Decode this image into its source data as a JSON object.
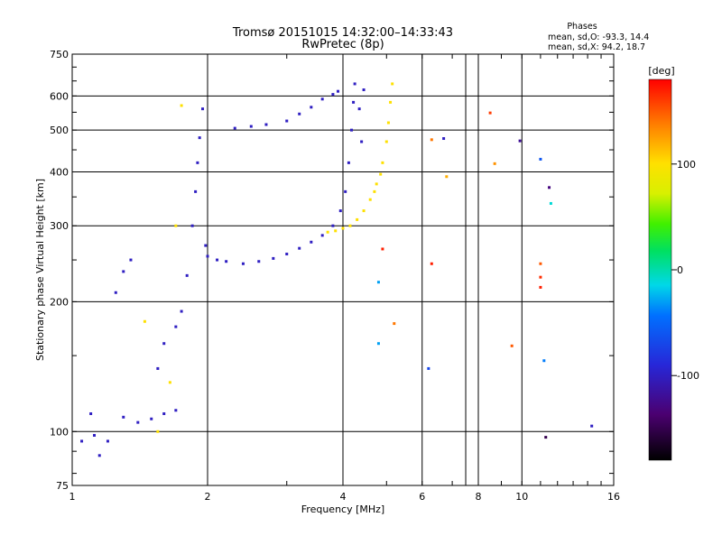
{
  "chart_data": {
    "type": "scatter",
    "title": "Tromsø 20151015 14:32:00–14:33:43",
    "subtitle": "RwPretec (8p)",
    "xlabel": "Frequency [MHz]",
    "ylabel": "Stationary phase Virtual Height [km]",
    "x_scale": "log",
    "y_scale": "log",
    "xlim": [
      1,
      16
    ],
    "ylim": [
      75,
      750
    ],
    "x_ticks": [
      1,
      2,
      4,
      6,
      8,
      10,
      16
    ],
    "x_tick_labels": [
      "1",
      "2",
      "4",
      "6",
      "8",
      "10",
      "16"
    ],
    "x_grid": [
      2,
      4,
      6,
      7.5,
      8,
      10
    ],
    "y_ticks": [
      75,
      100,
      200,
      300,
      400,
      500,
      600,
      750
    ],
    "y_tick_labels": [
      "75",
      "100",
      "200",
      "300",
      "400",
      "500",
      "600",
      "750"
    ],
    "y_grid": [
      100,
      200,
      300,
      400,
      500,
      600
    ],
    "stats_title": "Phases",
    "stats": [
      "mean, sd,O: -93.3, 14.4",
      "mean, sd,X:  94.2, 18.7"
    ],
    "colorbar": {
      "label": "[deg]",
      "range": [
        -180,
        180
      ],
      "ticks": [
        100,
        0,
        -100
      ],
      "tick_labels": [
        "100",
        "0",
        "-100"
      ]
    },
    "series": [
      {
        "name": "O-mode trace (blue/purple, ~-100 deg)",
        "phase_deg": -100,
        "points": [
          [
            1.05,
            95
          ],
          [
            1.1,
            110
          ],
          [
            1.12,
            98
          ],
          [
            1.15,
            88
          ],
          [
            1.2,
            95
          ],
          [
            1.25,
            210
          ],
          [
            1.3,
            235
          ],
          [
            1.35,
            250
          ],
          [
            1.3,
            108
          ],
          [
            1.4,
            105
          ],
          [
            1.5,
            107
          ],
          [
            1.6,
            110
          ],
          [
            1.7,
            112
          ],
          [
            1.55,
            140
          ],
          [
            1.6,
            160
          ],
          [
            1.7,
            175
          ],
          [
            1.75,
            190
          ],
          [
            1.8,
            230
          ],
          [
            1.85,
            300
          ],
          [
            1.88,
            360
          ],
          [
            1.9,
            420
          ],
          [
            1.92,
            480
          ],
          [
            1.95,
            560
          ],
          [
            1.98,
            270
          ],
          [
            2.0,
            255
          ],
          [
            2.1,
            250
          ],
          [
            2.2,
            248
          ],
          [
            2.4,
            245
          ],
          [
            2.6,
            248
          ],
          [
            2.8,
            252
          ],
          [
            3.0,
            258
          ],
          [
            3.2,
            266
          ],
          [
            3.4,
            275
          ],
          [
            3.6,
            285
          ],
          [
            3.8,
            300
          ],
          [
            3.95,
            325
          ],
          [
            4.05,
            360
          ],
          [
            4.12,
            420
          ],
          [
            4.18,
            500
          ],
          [
            4.22,
            580
          ],
          [
            4.25,
            640
          ],
          [
            4.35,
            560
          ],
          [
            4.4,
            470
          ],
          [
            4.45,
            620
          ],
          [
            2.3,
            505
          ],
          [
            2.5,
            510
          ],
          [
            2.7,
            515
          ],
          [
            3.0,
            525
          ],
          [
            3.2,
            545
          ],
          [
            3.4,
            565
          ],
          [
            3.6,
            590
          ],
          [
            3.8,
            605
          ],
          [
            3.9,
            615
          ]
        ]
      },
      {
        "name": "X-mode trace (yellow, ~+100 deg)",
        "phase_deg": 100,
        "points": [
          [
            3.7,
            290
          ],
          [
            3.85,
            292
          ],
          [
            4.0,
            296
          ],
          [
            4.15,
            300
          ],
          [
            4.3,
            310
          ],
          [
            4.45,
            325
          ],
          [
            4.6,
            345
          ],
          [
            4.75,
            375
          ],
          [
            4.9,
            420
          ],
          [
            5.0,
            470
          ],
          [
            5.05,
            520
          ],
          [
            5.1,
            580
          ],
          [
            5.15,
            640
          ],
          [
            4.7,
            360
          ],
          [
            4.85,
            395
          ],
          [
            1.75,
            570
          ],
          [
            1.7,
            300
          ],
          [
            1.65,
            130
          ],
          [
            1.55,
            100
          ],
          [
            1.45,
            180
          ]
        ]
      },
      {
        "name": "scattered outliers",
        "points": [
          [
            6.3,
            475,
            140
          ],
          [
            6.7,
            478,
            -100
          ],
          [
            6.8,
            390,
            120
          ],
          [
            6.3,
            245,
            170
          ],
          [
            6.2,
            140,
            -70
          ],
          [
            8.5,
            548,
            160
          ],
          [
            8.7,
            418,
            130
          ],
          [
            9.5,
            158,
            150
          ],
          [
            9.9,
            472,
            -120
          ],
          [
            11.0,
            428,
            -60
          ],
          [
            11.5,
            368,
            -130
          ],
          [
            11.6,
            338,
            -10
          ],
          [
            11.0,
            245,
            150
          ],
          [
            11.0,
            228,
            165
          ],
          [
            11.0,
            216,
            170
          ],
          [
            11.2,
            146,
            -40
          ],
          [
            11.3,
            97,
            -150
          ],
          [
            14.3,
            103,
            -100
          ],
          [
            4.9,
            265,
            170
          ],
          [
            4.8,
            222,
            -30
          ],
          [
            4.8,
            160,
            -30
          ],
          [
            5.2,
            178,
            140
          ]
        ]
      }
    ]
  }
}
